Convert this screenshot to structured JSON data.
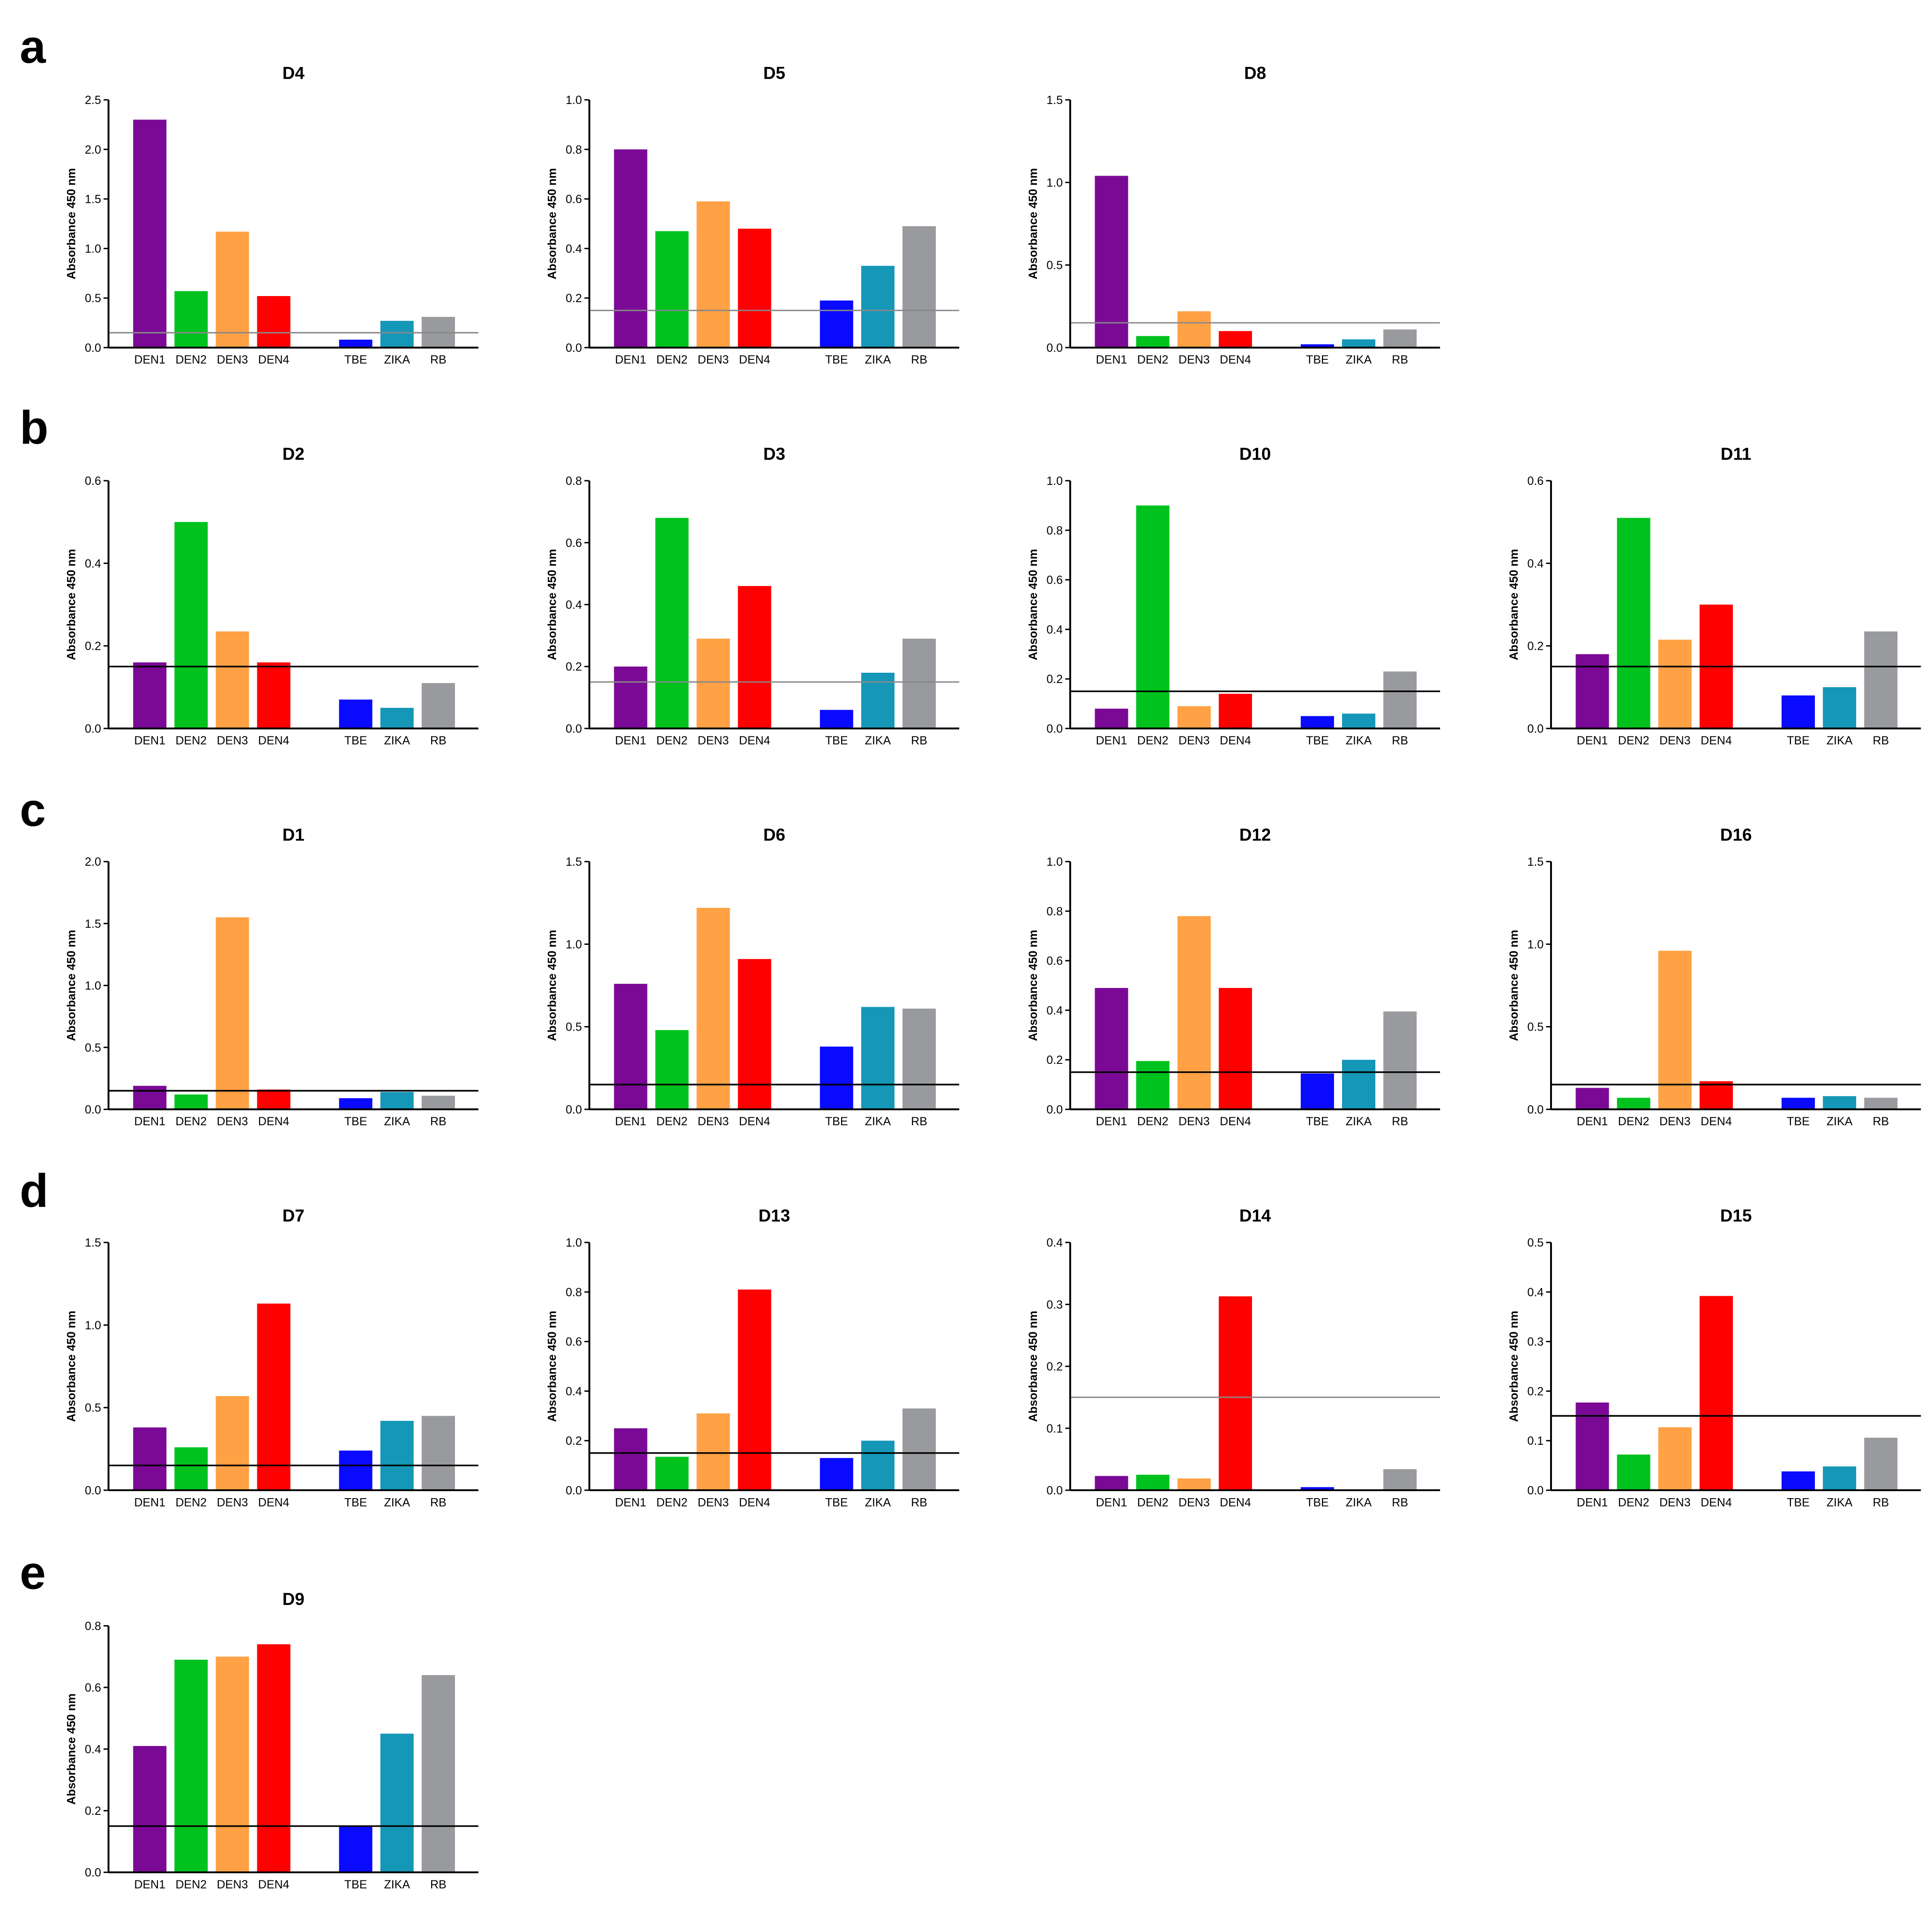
{
  "panel_letters": [
    "a",
    "b",
    "c",
    "d",
    "e"
  ],
  "colors": {
    "DEN1": "#7a0a96",
    "DEN2": "#00c21e",
    "DEN3": "#ffa144",
    "DEN4": "#ff0000",
    "TBE": "#0a0aff",
    "ZIKA": "#1597b7",
    "RB": "#999a9e",
    "axis": "#000000",
    "cutoff_dark": "#000000",
    "cutoff_light": "#888888"
  },
  "chart_data": [
    {
      "type": "bar",
      "panel": "a",
      "title": "D4",
      "ylabel": "Absorbance 450 nm",
      "categories": [
        "DEN1",
        "DEN2",
        "DEN3",
        "DEN4",
        "TBE",
        "ZIKA",
        "RB"
      ],
      "values": [
        2.3,
        0.57,
        1.17,
        0.52,
        0.08,
        0.27,
        0.31
      ],
      "ylim": [
        0,
        2.5
      ],
      "yticks": [
        "0.0",
        "0.5",
        "1.0",
        "1.5",
        "2.0",
        "2.5"
      ],
      "cutoff": 0.15,
      "cutoff_style": "light"
    },
    {
      "type": "bar",
      "panel": "a",
      "title": "D5",
      "ylabel": "Absorbance 450 nm",
      "categories": [
        "DEN1",
        "DEN2",
        "DEN3",
        "DEN4",
        "TBE",
        "ZIKA",
        "RB"
      ],
      "values": [
        0.8,
        0.47,
        0.59,
        0.48,
        0.19,
        0.33,
        0.49
      ],
      "ylim": [
        0,
        1.0
      ],
      "yticks": [
        "0.0",
        "0.2",
        "0.4",
        "0.6",
        "0.8",
        "1.0"
      ],
      "cutoff": 0.15,
      "cutoff_style": "light"
    },
    {
      "type": "bar",
      "panel": "a",
      "title": "D8",
      "ylabel": "Absorbance 450 nm",
      "categories": [
        "DEN1",
        "DEN2",
        "DEN3",
        "DEN4",
        "TBE",
        "ZIKA",
        "RB"
      ],
      "values": [
        1.04,
        0.07,
        0.22,
        0.1,
        0.02,
        0.05,
        0.11
      ],
      "ylim": [
        0,
        1.5
      ],
      "yticks": [
        "0.0",
        "0.5",
        "1.0",
        "1.5"
      ],
      "cutoff": 0.15,
      "cutoff_style": "light"
    },
    {
      "type": "bar",
      "panel": "b",
      "title": "D2",
      "ylabel": "Absorbance 450 nm",
      "categories": [
        "DEN1",
        "DEN2",
        "DEN3",
        "DEN4",
        "TBE",
        "ZIKA",
        "RB"
      ],
      "values": [
        0.16,
        0.5,
        0.235,
        0.16,
        0.07,
        0.05,
        0.11
      ],
      "ylim": [
        0,
        0.6
      ],
      "yticks": [
        "0.0",
        "0.2",
        "0.4",
        "0.6"
      ],
      "cutoff": 0.15,
      "cutoff_style": "dark"
    },
    {
      "type": "bar",
      "panel": "b",
      "title": "D3",
      "ylabel": "Absorbance 450 nm",
      "categories": [
        "DEN1",
        "DEN2",
        "DEN3",
        "DEN4",
        "TBE",
        "ZIKA",
        "RB"
      ],
      "values": [
        0.2,
        0.68,
        0.29,
        0.46,
        0.06,
        0.18,
        0.29
      ],
      "ylim": [
        0,
        0.8
      ],
      "yticks": [
        "0.0",
        "0.2",
        "0.4",
        "0.6",
        "0.8"
      ],
      "cutoff": 0.15,
      "cutoff_style": "light"
    },
    {
      "type": "bar",
      "panel": "b",
      "title": "D10",
      "ylabel": "Absorbance 450 nm",
      "categories": [
        "DEN1",
        "DEN2",
        "DEN3",
        "DEN4",
        "TBE",
        "ZIKA",
        "RB"
      ],
      "values": [
        0.08,
        0.9,
        0.09,
        0.14,
        0.05,
        0.06,
        0.23
      ],
      "ylim": [
        0,
        1.0
      ],
      "yticks": [
        "0.0",
        "0.2",
        "0.4",
        "0.6",
        "0.8",
        "1.0"
      ],
      "cutoff": 0.15,
      "cutoff_style": "dark"
    },
    {
      "type": "bar",
      "panel": "b",
      "title": "D11",
      "ylabel": "Absorbance 450 nm",
      "categories": [
        "DEN1",
        "DEN2",
        "DEN3",
        "DEN4",
        "TBE",
        "ZIKA",
        "RB"
      ],
      "values": [
        0.18,
        0.51,
        0.215,
        0.3,
        0.08,
        0.1,
        0.235
      ],
      "ylim": [
        0,
        0.6
      ],
      "yticks": [
        "0.0",
        "0.2",
        "0.4",
        "0.6"
      ],
      "cutoff": 0.15,
      "cutoff_style": "dark"
    },
    {
      "type": "bar",
      "panel": "c",
      "title": "D1",
      "ylabel": "Absorbance 450 nm",
      "categories": [
        "DEN1",
        "DEN2",
        "DEN3",
        "DEN4",
        "TBE",
        "ZIKA",
        "RB"
      ],
      "values": [
        0.19,
        0.12,
        1.55,
        0.16,
        0.09,
        0.14,
        0.11
      ],
      "ylim": [
        0,
        2.0
      ],
      "yticks": [
        "0.0",
        "0.5",
        "1.0",
        "1.5",
        "2.0"
      ],
      "cutoff": 0.15,
      "cutoff_style": "dark"
    },
    {
      "type": "bar",
      "panel": "c",
      "title": "D6",
      "ylabel": "Absorbance 450 nm",
      "categories": [
        "DEN1",
        "DEN2",
        "DEN3",
        "DEN4",
        "TBE",
        "ZIKA",
        "RB"
      ],
      "values": [
        0.76,
        0.48,
        1.22,
        0.91,
        0.38,
        0.62,
        0.61
      ],
      "ylim": [
        0,
        1.5
      ],
      "yticks": [
        "0.0",
        "0.5",
        "1.0",
        "1.5"
      ],
      "cutoff": 0.15,
      "cutoff_style": "dark"
    },
    {
      "type": "bar",
      "panel": "c",
      "title": "D12",
      "ylabel": "Absorbance 450 nm",
      "categories": [
        "DEN1",
        "DEN2",
        "DEN3",
        "DEN4",
        "TBE",
        "ZIKA",
        "RB"
      ],
      "values": [
        0.49,
        0.195,
        0.78,
        0.49,
        0.145,
        0.2,
        0.395
      ],
      "ylim": [
        0,
        1.0
      ],
      "yticks": [
        "0.0",
        "0.2",
        "0.4",
        "0.6",
        "0.8",
        "1.0"
      ],
      "cutoff": 0.15,
      "cutoff_style": "dark"
    },
    {
      "type": "bar",
      "panel": "c",
      "title": "D16",
      "ylabel": "Absorbance 450 nm",
      "categories": [
        "DEN1",
        "DEN2",
        "DEN3",
        "DEN4",
        "TBE",
        "ZIKA",
        "RB"
      ],
      "values": [
        0.13,
        0.07,
        0.96,
        0.17,
        0.07,
        0.08,
        0.07
      ],
      "ylim": [
        0,
        1.5
      ],
      "yticks": [
        "0.0",
        "0.5",
        "1.0",
        "1.5"
      ],
      "cutoff": 0.15,
      "cutoff_style": "dark"
    },
    {
      "type": "bar",
      "panel": "d",
      "title": "D7",
      "ylabel": "Absorbance 450 nm",
      "categories": [
        "DEN1",
        "DEN2",
        "DEN3",
        "DEN4",
        "TBE",
        "ZIKA",
        "RB"
      ],
      "values": [
        0.38,
        0.26,
        0.57,
        1.13,
        0.24,
        0.42,
        0.45
      ],
      "ylim": [
        0,
        1.5
      ],
      "yticks": [
        "0.0",
        "0.5",
        "1.0",
        "1.5"
      ],
      "cutoff": 0.15,
      "cutoff_style": "dark"
    },
    {
      "type": "bar",
      "panel": "d",
      "title": "D13",
      "ylabel": "Absorbance 450 nm",
      "categories": [
        "DEN1",
        "DEN2",
        "DEN3",
        "DEN4",
        "TBE",
        "ZIKA",
        "RB"
      ],
      "values": [
        0.25,
        0.135,
        0.31,
        0.81,
        0.13,
        0.2,
        0.33
      ],
      "ylim": [
        0,
        1.0
      ],
      "yticks": [
        "0.0",
        "0.2",
        "0.4",
        "0.6",
        "0.8",
        "1.0"
      ],
      "cutoff": 0.15,
      "cutoff_style": "dark"
    },
    {
      "type": "bar",
      "panel": "d",
      "title": "D14",
      "ylabel": "Absorbance 450 nm",
      "categories": [
        "DEN1",
        "DEN2",
        "DEN3",
        "DEN4",
        "TBE",
        "ZIKA",
        "RB"
      ],
      "values": [
        0.023,
        0.025,
        0.019,
        0.313,
        0.005,
        0.0,
        0.034
      ],
      "ylim": [
        0,
        0.4
      ],
      "yticks": [
        "0.0",
        "0.1",
        "0.2",
        "0.3",
        "0.4"
      ],
      "cutoff": 0.15,
      "cutoff_style": "light"
    },
    {
      "type": "bar",
      "panel": "d",
      "title": "D15",
      "ylabel": "Absorbance 450 nm",
      "categories": [
        "DEN1",
        "DEN2",
        "DEN3",
        "DEN4",
        "TBE",
        "ZIKA",
        "RB"
      ],
      "values": [
        0.177,
        0.072,
        0.127,
        0.392,
        0.038,
        0.048,
        0.106
      ],
      "ylim": [
        0,
        0.5
      ],
      "yticks": [
        "0.0",
        "0.1",
        "0.2",
        "0.3",
        "0.4",
        "0.5"
      ],
      "cutoff": 0.15,
      "cutoff_style": "dark"
    },
    {
      "type": "bar",
      "panel": "e",
      "title": "D9",
      "ylabel": "Absorbance 450 nm",
      "categories": [
        "DEN1",
        "DEN2",
        "DEN3",
        "DEN4",
        "TBE",
        "ZIKA",
        "RB"
      ],
      "values": [
        0.41,
        0.69,
        0.7,
        0.74,
        0.15,
        0.45,
        0.64
      ],
      "ylim": [
        0,
        0.8
      ],
      "yticks": [
        "0.0",
        "0.2",
        "0.4",
        "0.6",
        "0.8"
      ],
      "cutoff": 0.15,
      "cutoff_style": "dark"
    }
  ]
}
